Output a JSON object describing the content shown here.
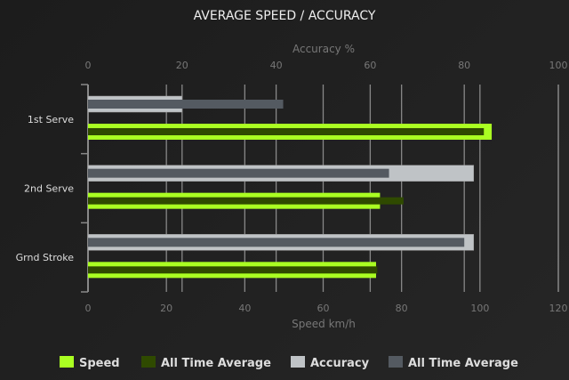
{
  "chart_data": {
    "type": "bar",
    "orientation": "horizontal",
    "title": "AVERAGE SPEED / ACCURACY",
    "categories": [
      "1st Serve",
      "2nd Serve",
      "Grnd Stroke"
    ],
    "x_bottom": {
      "label": "Speed km/h",
      "range": [
        0,
        120
      ],
      "ticks": [
        0,
        20,
        40,
        60,
        80,
        100,
        120
      ]
    },
    "x_top": {
      "label": "Accuracy %",
      "range": [
        0,
        100
      ],
      "ticks": [
        0,
        20,
        40,
        60,
        80,
        100
      ]
    },
    "grid": true,
    "legend_position": "bottom",
    "series": [
      {
        "name": "Speed",
        "axis": "bottom",
        "color": "#aaff22",
        "values": [
          103,
          74.5,
          73.5
        ]
      },
      {
        "name": "All Time Average",
        "axis": "bottom",
        "color": "#2f4a00",
        "values": [
          101,
          80.5,
          73.8
        ]
      },
      {
        "name": "Accuracy",
        "axis": "top",
        "color": "#bfc3c6",
        "values": [
          20,
          82,
          82
        ]
      },
      {
        "name": "All Time Average",
        "axis": "top",
        "color": "#545a61",
        "values": [
          41.5,
          64,
          80
        ]
      }
    ]
  }
}
